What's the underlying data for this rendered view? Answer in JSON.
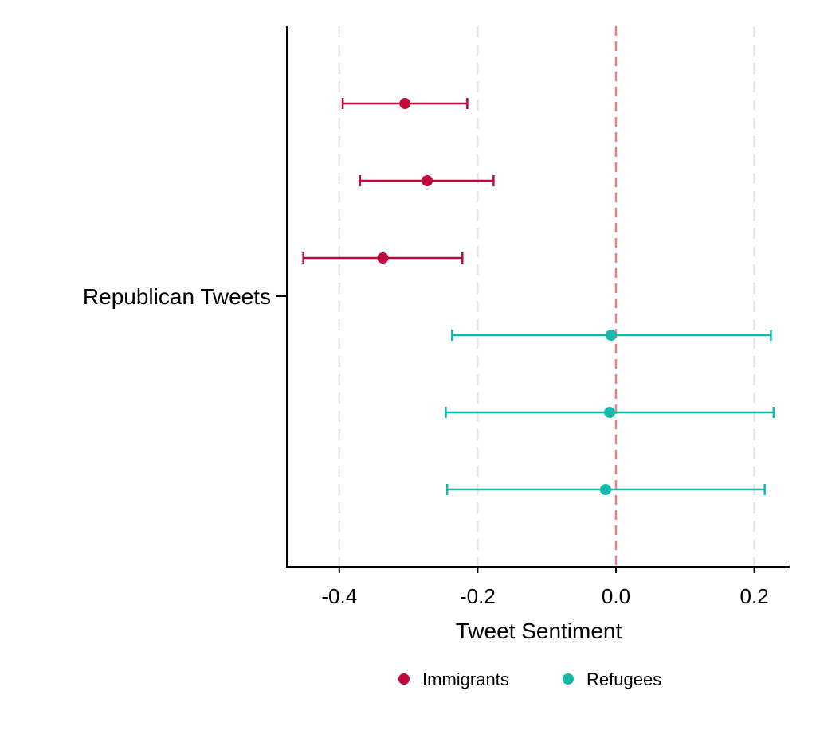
{
  "chart_data": {
    "type": "scatter",
    "title": "",
    "xlabel": "Tweet Sentiment",
    "ylabel": "",
    "xlim": [
      -0.477,
      0.25
    ],
    "xticks": [
      -0.4,
      -0.2,
      0.0,
      0.2
    ],
    "xtick_labels": [
      "-0.4",
      "-0.2",
      "0.0",
      "0.2"
    ],
    "categories": [
      "Republican Tweets"
    ],
    "grid": true,
    "reference_line": {
      "x": 0.0,
      "color": "#f08080",
      "style": "dashed"
    },
    "legend": {
      "position": "bottom"
    },
    "series": [
      {
        "name": "Immigrants",
        "color": "#c0093a",
        "points": [
          {
            "estimate": -0.305,
            "lower": -0.395,
            "upper": -0.215
          },
          {
            "estimate": -0.273,
            "lower": -0.37,
            "upper": -0.177
          },
          {
            "estimate": -0.337,
            "lower": -0.452,
            "upper": -0.222
          }
        ]
      },
      {
        "name": "Refugees",
        "color": "#14b8aa",
        "points": [
          {
            "estimate": -0.007,
            "lower": -0.237,
            "upper": 0.224
          },
          {
            "estimate": -0.009,
            "lower": -0.246,
            "upper": 0.228
          },
          {
            "estimate": -0.015,
            "lower": -0.244,
            "upper": 0.215
          }
        ]
      }
    ]
  }
}
